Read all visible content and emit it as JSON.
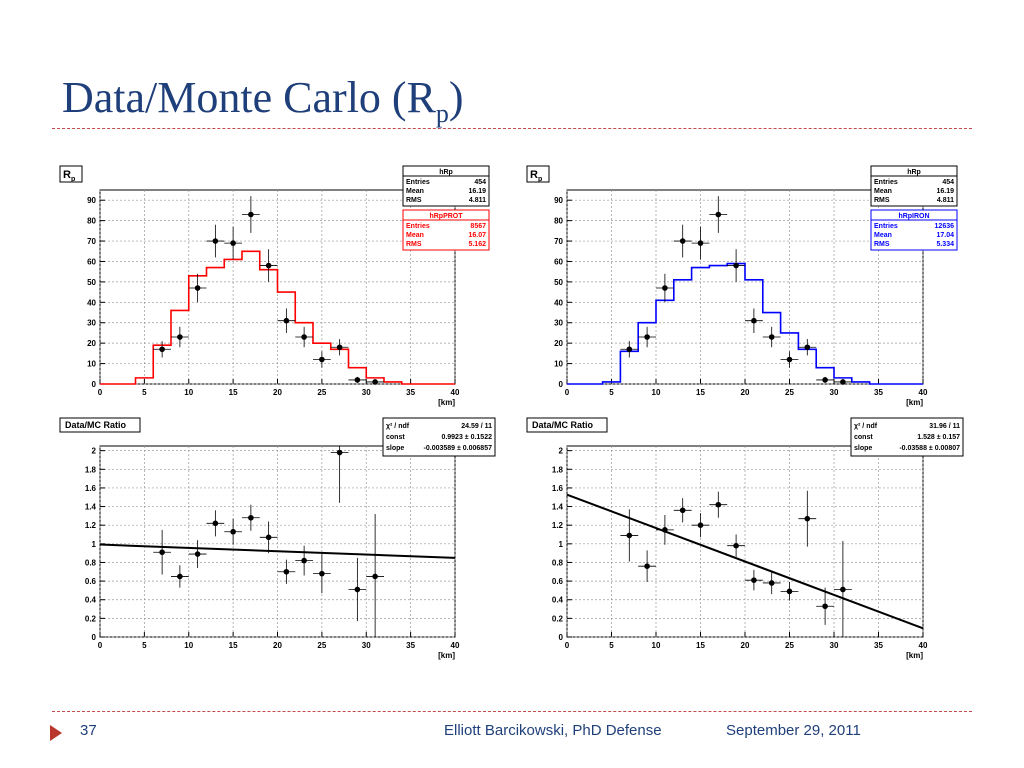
{
  "slide": {
    "title_main": "Data/Monte Carlo (R",
    "title_sub": "p",
    "title_close": ")",
    "page_number": "37",
    "author": "Elliott Barcikowski, PhD Defense",
    "date": "September 29, 2011"
  },
  "colors": {
    "title": "#1f3f7a",
    "rule": "#c44b4b",
    "arrow": "#b8362b",
    "mc_prot": "#ff0000",
    "mc_iron": "#0000ff",
    "data": "#000000"
  },
  "chart_data": [
    {
      "type": "histogram",
      "title": "R",
      "title_sub": "p",
      "xlabel": "[km]",
      "xlim": [
        0,
        40
      ],
      "ylim": [
        0,
        95
      ],
      "xticks": [
        0,
        5,
        10,
        15,
        20,
        25,
        30,
        35,
        40
      ],
      "yticks": [
        0,
        10,
        20,
        30,
        40,
        50,
        60,
        70,
        80,
        90
      ],
      "grid": true,
      "stats_boxes": [
        {
          "name": "hRp",
          "color": "#000000",
          "rows": [
            [
              "Entries",
              "454"
            ],
            [
              "Mean",
              "16.19"
            ],
            [
              "RMS",
              "4.811"
            ]
          ]
        },
        {
          "name": "hRpPROT",
          "color": "#ff0000",
          "rows": [
            [
              "Entries",
              "8567"
            ],
            [
              "Mean",
              "16.07"
            ],
            [
              "RMS",
              "5.162"
            ]
          ]
        }
      ],
      "mc_series": {
        "name": "hRpPROT",
        "color": "#ff0000",
        "bin_edges": [
          0,
          2,
          4,
          6,
          8,
          10,
          12,
          14,
          16,
          18,
          20,
          22,
          24,
          26,
          28,
          30,
          32,
          34,
          36,
          38,
          40
        ],
        "values": [
          0,
          0,
          3,
          19,
          36,
          53,
          57,
          61,
          65,
          56,
          45,
          30,
          20,
          17,
          8,
          3,
          1,
          0,
          0,
          0
        ]
      },
      "data_series": {
        "name": "hRp",
        "x": [
          7,
          9,
          11,
          13,
          15,
          17,
          19,
          21,
          23,
          25,
          27,
          29,
          31
        ],
        "y": [
          17,
          23,
          47,
          70,
          69,
          83,
          58,
          31,
          23,
          12,
          18,
          2,
          1
        ],
        "yerr": [
          4,
          5,
          7,
          8,
          8,
          9,
          8,
          6,
          5,
          4,
          4,
          1.5,
          1
        ]
      }
    },
    {
      "type": "histogram",
      "title": "R",
      "title_sub": "p",
      "xlabel": "[km]",
      "xlim": [
        0,
        40
      ],
      "ylim": [
        0,
        95
      ],
      "xticks": [
        0,
        5,
        10,
        15,
        20,
        25,
        30,
        35,
        40
      ],
      "yticks": [
        0,
        10,
        20,
        30,
        40,
        50,
        60,
        70,
        80,
        90
      ],
      "grid": true,
      "stats_boxes": [
        {
          "name": "hRp",
          "color": "#000000",
          "rows": [
            [
              "Entries",
              "454"
            ],
            [
              "Mean",
              "16.19"
            ],
            [
              "RMS",
              "4.811"
            ]
          ]
        },
        {
          "name": "hRpIRON",
          "color": "#0000ff",
          "rows": [
            [
              "Entries",
              "12636"
            ],
            [
              "Mean",
              "17.04"
            ],
            [
              "RMS",
              "5.334"
            ]
          ]
        }
      ],
      "mc_series": {
        "name": "hRpIRON",
        "color": "#0000ff",
        "bin_edges": [
          0,
          2,
          4,
          6,
          8,
          10,
          12,
          14,
          16,
          18,
          20,
          22,
          24,
          26,
          28,
          30,
          32,
          34,
          36,
          38,
          40
        ],
        "values": [
          0,
          0,
          1,
          16,
          30,
          41,
          51,
          57,
          58,
          59,
          51,
          35,
          25,
          17,
          8,
          3,
          1,
          0,
          0,
          0
        ]
      },
      "data_series": {
        "name": "hRp",
        "x": [
          7,
          9,
          11,
          13,
          15,
          17,
          19,
          21,
          23,
          25,
          27,
          29,
          31
        ],
        "y": [
          17,
          23,
          47,
          70,
          69,
          83,
          58,
          31,
          23,
          12,
          18,
          2,
          1
        ],
        "yerr": [
          4,
          5,
          7,
          8,
          8,
          9,
          8,
          6,
          5,
          4,
          4,
          1.5,
          1
        ]
      }
    },
    {
      "type": "scatter",
      "title": "Data/MC Ratio",
      "xlabel": "[km]",
      "xlim": [
        0,
        40
      ],
      "ylim": [
        0,
        2.05
      ],
      "xticks": [
        0,
        5,
        10,
        15,
        20,
        25,
        30,
        35,
        40
      ],
      "yticks": [
        0,
        0.2,
        0.4,
        0.6,
        0.8,
        1,
        1.2,
        1.4,
        1.6,
        1.8,
        2
      ],
      "grid": true,
      "fit_box": {
        "rows": [
          [
            "χ² / ndf",
            "24.59 / 11"
          ],
          [
            "const",
            "0.9923 ± 0.1522"
          ],
          [
            "slope",
            "-0.003589 ± 0.006857"
          ]
        ]
      },
      "fit_line": {
        "const": 0.9923,
        "slope": -0.003589
      },
      "points": {
        "x": [
          7,
          9,
          11,
          13,
          15,
          17,
          19,
          21,
          23,
          25,
          27,
          29,
          31
        ],
        "y": [
          0.91,
          0.65,
          0.89,
          1.22,
          1.13,
          1.28,
          1.07,
          0.7,
          0.82,
          0.68,
          1.98,
          0.51,
          0.65
        ],
        "yerr": [
          0.24,
          0.12,
          0.15,
          0.14,
          0.14,
          0.14,
          0.17,
          0.13,
          0.16,
          0.21,
          0.54,
          0.34,
          0.67
        ]
      }
    },
    {
      "type": "scatter",
      "title": "Data/MC Ratio",
      "xlabel": "[km]",
      "xlim": [
        0,
        40
      ],
      "ylim": [
        0,
        2.05
      ],
      "xticks": [
        0,
        5,
        10,
        15,
        20,
        25,
        30,
        35,
        40
      ],
      "yticks": [
        0,
        0.2,
        0.4,
        0.6,
        0.8,
        1,
        1.2,
        1.4,
        1.6,
        1.8,
        2
      ],
      "grid": true,
      "fit_box": {
        "rows": [
          [
            "χ² / ndf",
            "31.96 / 11"
          ],
          [
            "const",
            "1.528 ± 0.157"
          ],
          [
            "slope",
            "-0.03588 ± 0.00807"
          ]
        ]
      },
      "fit_line": {
        "const": 1.528,
        "slope": -0.03588
      },
      "points": {
        "x": [
          7,
          9,
          11,
          13,
          15,
          17,
          19,
          21,
          23,
          25,
          27,
          29,
          31
        ],
        "y": [
          1.09,
          0.76,
          1.15,
          1.36,
          1.2,
          1.42,
          0.98,
          0.61,
          0.58,
          0.49,
          1.27,
          0.33,
          0.51
        ],
        "yerr": [
          0.28,
          0.17,
          0.16,
          0.13,
          0.13,
          0.14,
          0.12,
          0.11,
          0.12,
          0.1,
          0.3,
          0.2,
          0.52
        ]
      }
    }
  ]
}
